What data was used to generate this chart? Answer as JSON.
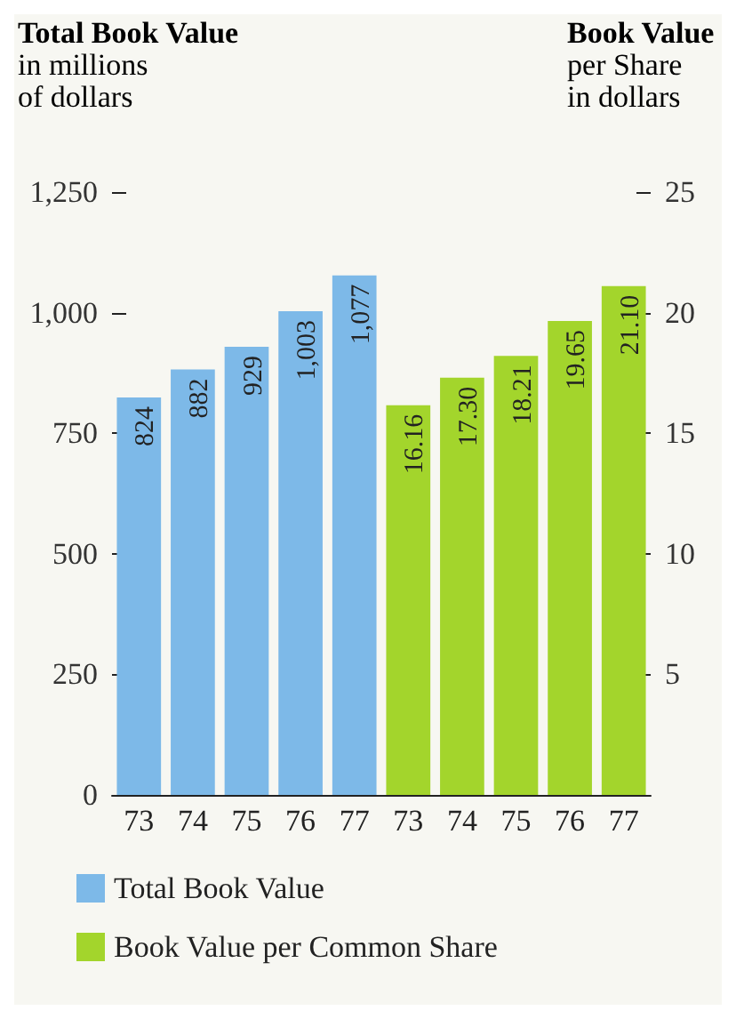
{
  "chart_data": {
    "type": "bar",
    "ylabel": "Total Book Value\nin millions\nof dollars",
    "y2label": "Book Value\nper Share\nin dollars",
    "categories": [
      "73",
      "74",
      "75",
      "76",
      "77",
      "73",
      "74",
      "75",
      "76",
      "77"
    ],
    "series": [
      {
        "name": "Total Book Value",
        "color": "#7db9e8",
        "values": [
          824,
          882,
          929,
          1003,
          1077,
          null,
          null,
          null,
          null,
          null
        ],
        "value_labels": [
          "824",
          "882",
          "929",
          "1,003",
          "1,077",
          null,
          null,
          null,
          null,
          null
        ]
      },
      {
        "name": "Book Value per Common Share",
        "color": "#a3d52c",
        "axis": "y2",
        "values": [
          null,
          null,
          null,
          null,
          null,
          16.16,
          17.3,
          18.21,
          19.65,
          21.1
        ],
        "value_labels": [
          null,
          null,
          null,
          null,
          null,
          "16.16",
          "17.30",
          "18.21",
          "19.65",
          "21.10"
        ]
      }
    ],
    "ylim": [
      0,
      1250
    ],
    "yticks": [
      0,
      {
        "value": 250,
        "label": "250"
      },
      {
        "value": 500,
        "label": "500"
      },
      {
        "value": 750,
        "label": "750"
      },
      {
        "value": 1000,
        "label": "1,000"
      },
      {
        "value": 1250,
        "label": "1,250"
      }
    ],
    "y2lim": [
      0,
      25
    ],
    "y2ticks": [
      5,
      10,
      15,
      20,
      25
    ],
    "legend": "bottom",
    "grid": false
  }
}
